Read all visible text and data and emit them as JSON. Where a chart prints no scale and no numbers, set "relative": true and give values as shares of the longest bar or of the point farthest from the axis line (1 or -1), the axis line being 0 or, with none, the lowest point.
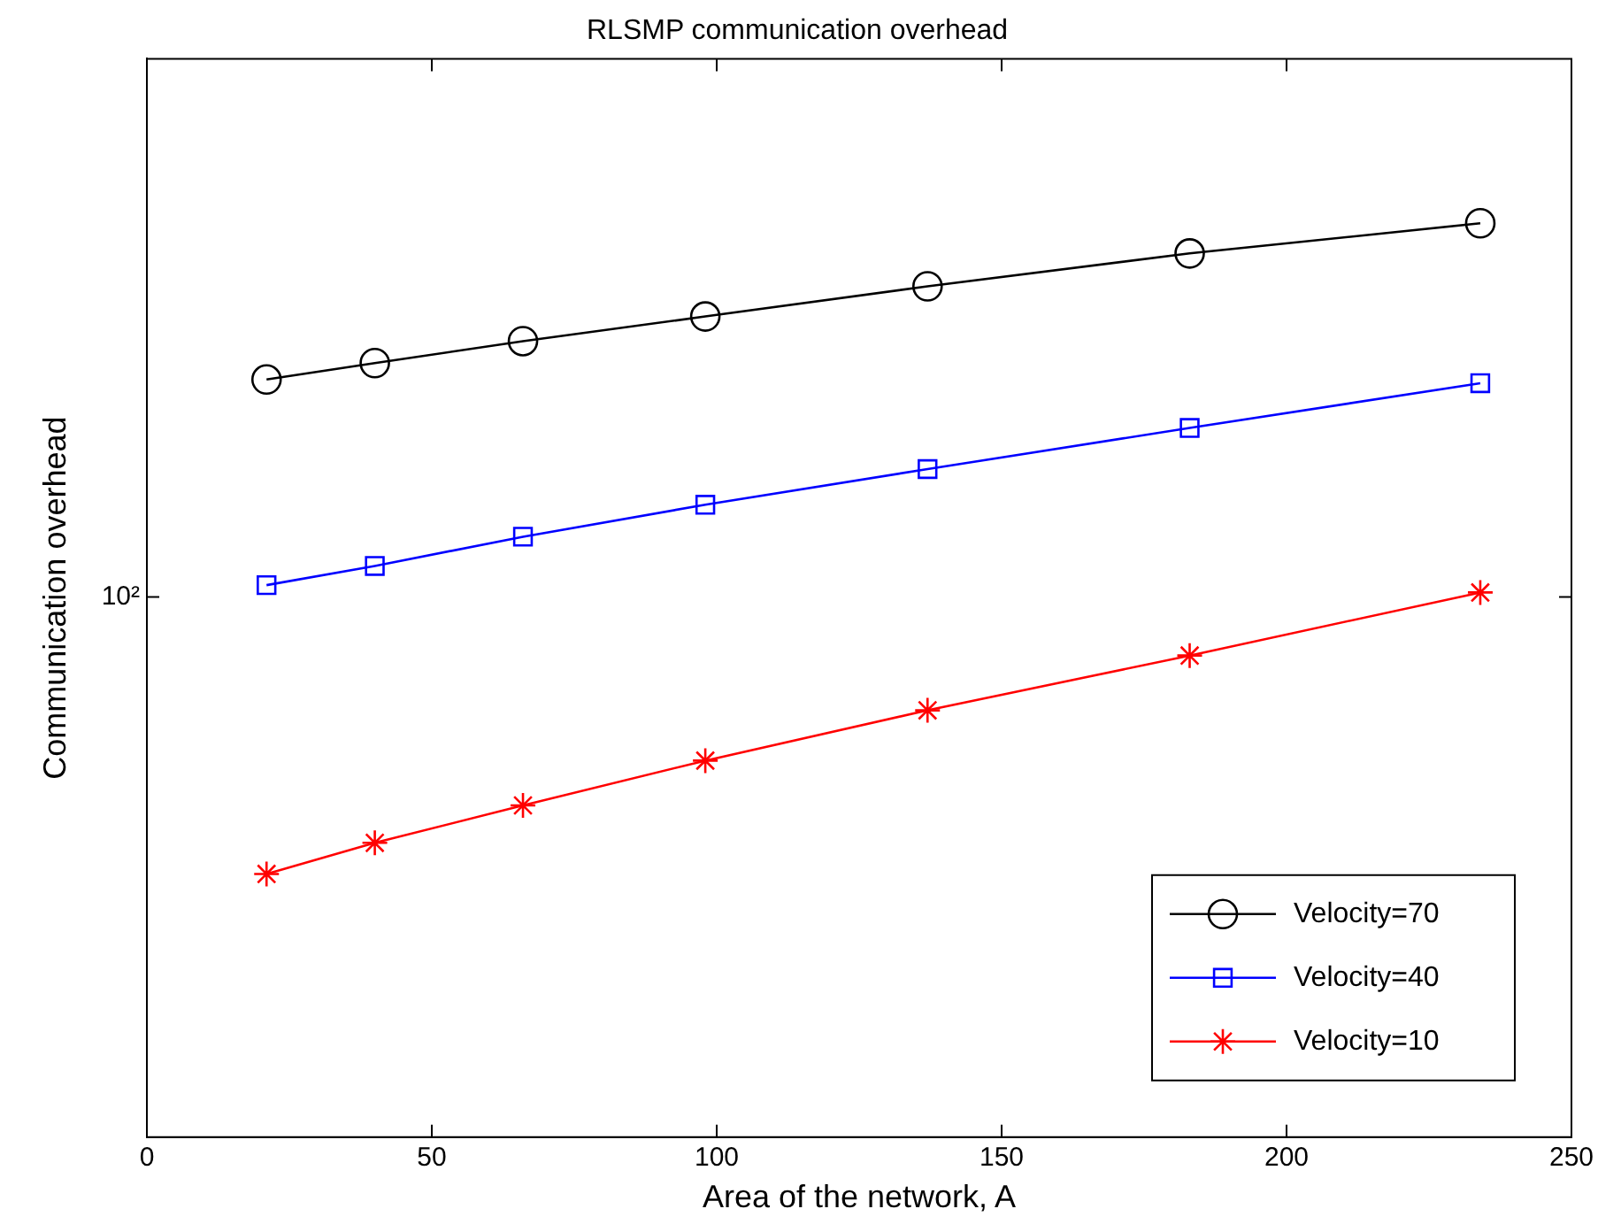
{
  "chart_data": {
    "type": "line",
    "title": "RLSMP communication overhead",
    "xlabel": "Area of the network, A",
    "ylabel": "Communication overhead",
    "x": [
      21,
      40,
      66,
      98,
      137,
      183,
      234
    ],
    "series": [
      {
        "name": "Velocity=70",
        "color": "#000000",
        "marker": "circle",
        "values": [
          0.829,
          0.847,
          0.871,
          0.898,
          0.931,
          0.967,
          1
        ]
      },
      {
        "name": "Velocity=40",
        "color": "#0000ff",
        "marker": "square",
        "values": [
          0.604,
          0.625,
          0.657,
          0.692,
          0.731,
          0.776,
          0.825
        ]
      },
      {
        "name": "Velocity=10",
        "color": "#ff0000",
        "marker": "cross",
        "values": [
          0.288,
          0.322,
          0.363,
          0.412,
          0.467,
          0.527,
          0.596
        ]
      }
    ],
    "relative": true,
    "xlim": [
      0,
      250
    ],
    "xticks": [
      0,
      50,
      100,
      150,
      200,
      250
    ],
    "annotations": [
      "10²"
    ],
    "grid": false,
    "legend": "bottom right",
    "line_style": "solid"
  }
}
